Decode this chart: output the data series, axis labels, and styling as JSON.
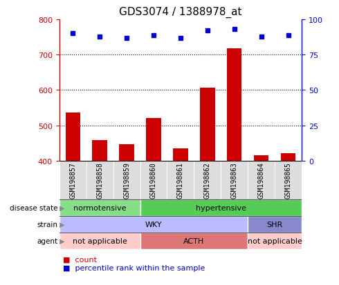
{
  "title": "GDS3074 / 1388978_at",
  "samples": [
    "GSM198857",
    "GSM198858",
    "GSM198859",
    "GSM198860",
    "GSM198861",
    "GSM198862",
    "GSM198863",
    "GSM198864",
    "GSM198865"
  ],
  "counts": [
    537,
    458,
    447,
    521,
    434,
    606,
    718,
    415,
    422
  ],
  "percentile_ranks": [
    90,
    88,
    87,
    89,
    87,
    92,
    93,
    88,
    89
  ],
  "ylim_left": [
    400,
    800
  ],
  "ylim_right": [
    0,
    100
  ],
  "yticks_left": [
    400,
    500,
    600,
    700,
    800
  ],
  "yticks_right": [
    0,
    25,
    50,
    75,
    100
  ],
  "bar_color": "#cc0000",
  "dot_color": "#0000cc",
  "bar_width": 0.55,
  "disease_state_rows": [
    {
      "label": "normotensive",
      "start": 0,
      "end": 3,
      "color": "#88dd88"
    },
    {
      "label": "hypertensive",
      "start": 3,
      "end": 9,
      "color": "#55cc55"
    }
  ],
  "strain_rows": [
    {
      "label": "WKY",
      "start": 0,
      "end": 7,
      "color": "#bbbbff"
    },
    {
      "label": "SHR",
      "start": 7,
      "end": 9,
      "color": "#8888cc"
    }
  ],
  "agent_rows": [
    {
      "label": "not applicable",
      "start": 0,
      "end": 3,
      "color": "#ffcccc"
    },
    {
      "label": "ACTH",
      "start": 3,
      "end": 7,
      "color": "#dd7777"
    },
    {
      "label": "not applicable",
      "start": 7,
      "end": 9,
      "color": "#ffcccc"
    }
  ],
  "row_labels": [
    "disease state",
    "strain",
    "agent"
  ],
  "tick_fontsize": 8,
  "title_fontsize": 11,
  "sample_fontsize": 7,
  "ann_fontsize": 8,
  "legend_fontsize": 8
}
